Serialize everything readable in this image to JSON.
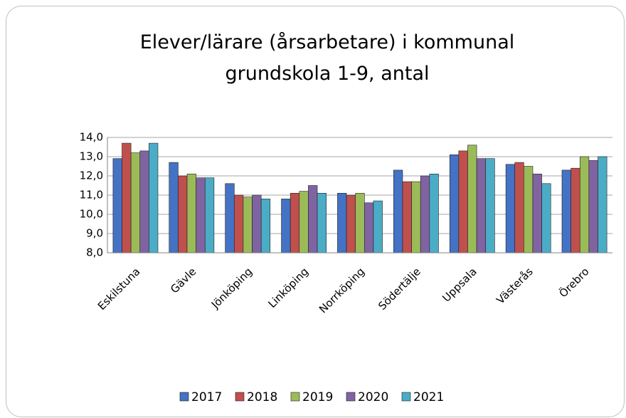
{
  "chart_data": {
    "type": "bar",
    "title": "Elever/lärare (årsarbetare) i kommunal grundskola 1-9, antal",
    "categories": [
      "Eskilstuna",
      "Gävle",
      "Jönköping",
      "Linköping",
      "Norrköping",
      "Södertälje",
      "Uppsala",
      "Västerås",
      "Örebro"
    ],
    "series": [
      {
        "name": "2017",
        "color": "#4472c4",
        "values": [
          12.9,
          12.7,
          11.6,
          10.8,
          11.1,
          12.3,
          13.1,
          12.6,
          12.3
        ]
      },
      {
        "name": "2018",
        "color": "#c0504d",
        "values": [
          13.7,
          12.0,
          11.0,
          11.1,
          11.0,
          11.7,
          13.3,
          12.7,
          12.4
        ]
      },
      {
        "name": "2019",
        "color": "#9bbb59",
        "values": [
          13.2,
          12.1,
          10.9,
          11.2,
          11.1,
          11.7,
          13.6,
          12.5,
          13.0
        ]
      },
      {
        "name": "2020",
        "color": "#8064a2",
        "values": [
          13.3,
          11.9,
          11.0,
          11.5,
          10.6,
          12.0,
          12.9,
          12.1,
          12.8
        ]
      },
      {
        "name": "2021",
        "color": "#4bacc6",
        "values": [
          13.7,
          11.9,
          10.8,
          11.1,
          10.7,
          12.1,
          12.9,
          11.6,
          13.0
        ]
      }
    ],
    "ylim": [
      8,
      14
    ],
    "yticks": [
      {
        "value": 8,
        "label": "8,0"
      },
      {
        "value": 9,
        "label": "9,0"
      },
      {
        "value": 10,
        "label": "10,0"
      },
      {
        "value": 11,
        "label": "11,0"
      },
      {
        "value": 12,
        "label": "12,0"
      },
      {
        "value": 13,
        "label": "13,0"
      },
      {
        "value": 14,
        "label": "14,0"
      }
    ],
    "grid": true,
    "legend": "bottom"
  }
}
